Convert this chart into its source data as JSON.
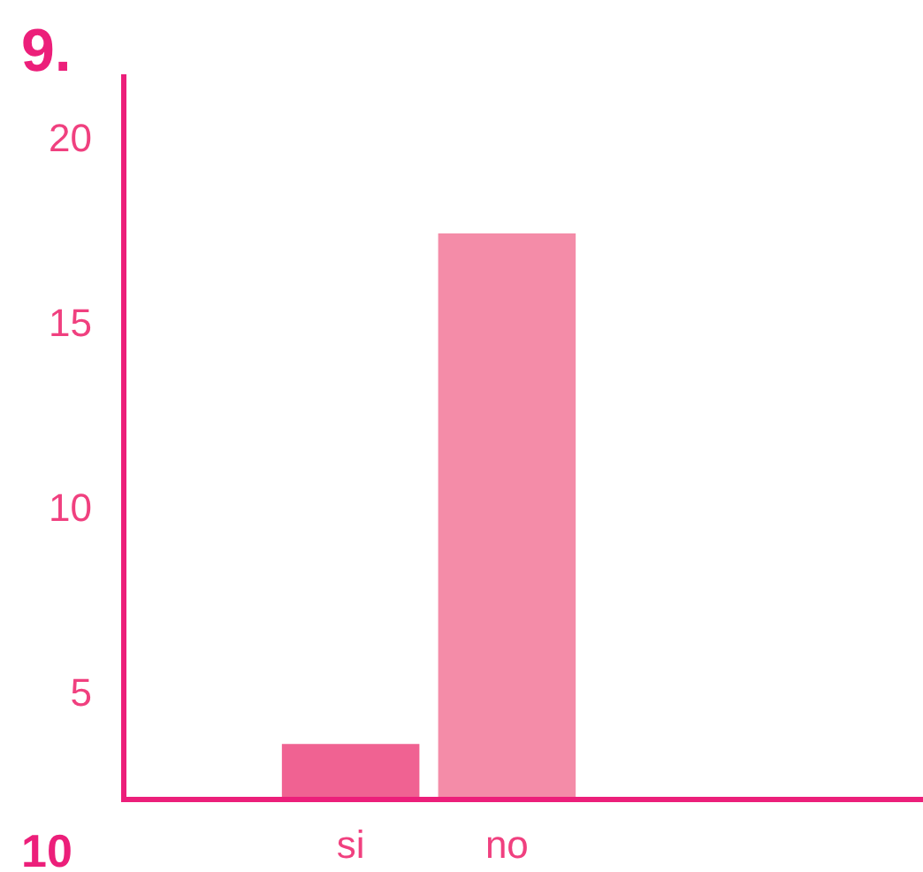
{
  "chart_data": {
    "type": "bar",
    "title": "9.",
    "categories": [
      "si",
      "no"
    ],
    "colors": [
      "#f06292",
      "#f48ca8"
    ],
    "values": [
      3.6,
      17.4
    ],
    "ylim": [
      2.1,
      21.7
    ],
    "yticks": [
      5,
      10,
      15,
      20
    ],
    "grid": false,
    "annotations": [
      "10"
    ]
  }
}
